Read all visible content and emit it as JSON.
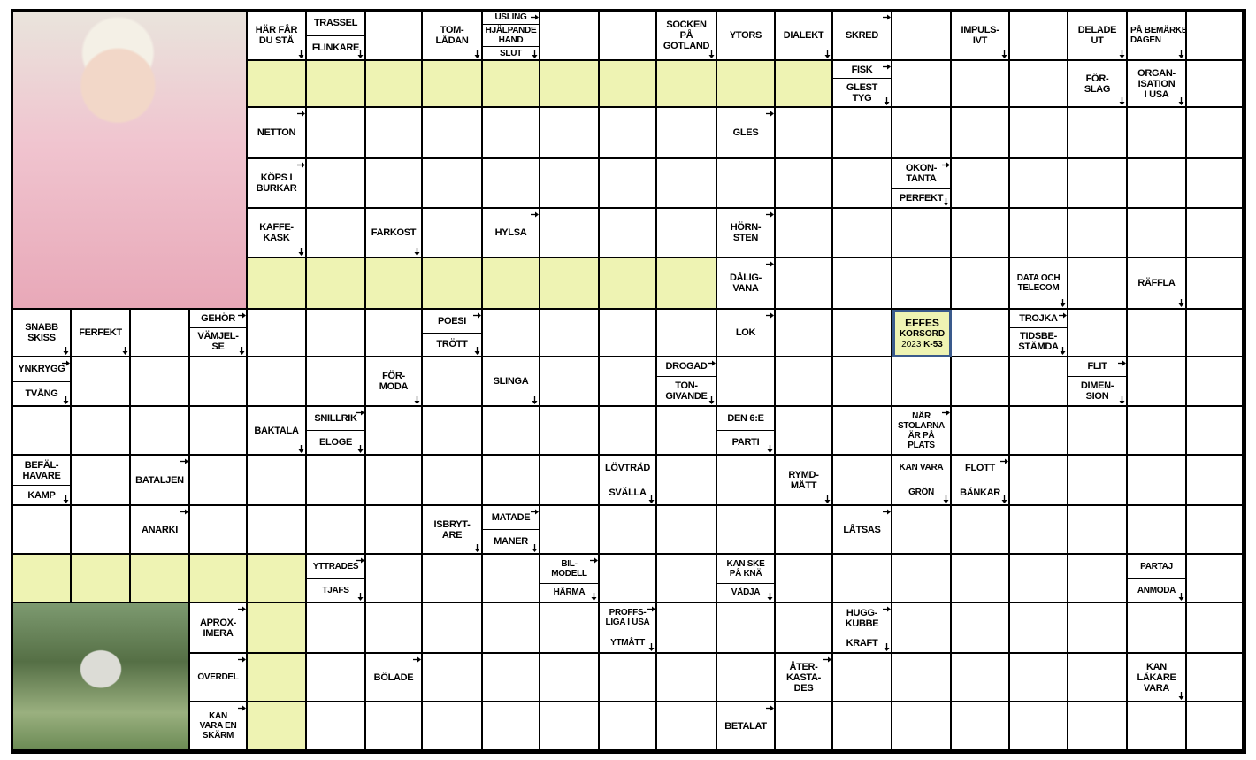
{
  "puzzle": {
    "logo": {
      "line1": "EFFES",
      "line2": "KORSORD",
      "year": "2023",
      "code": "K-53"
    },
    "highlight_color": "#eef3b3",
    "images": [
      {
        "name": "photo-laughing-elderly-woman-with-dentures"
      },
      {
        "name": "photo-beekeeper-with-hives"
      }
    ],
    "clues": [
      {
        "r": 0,
        "c": 4,
        "parts": [
          "HÄR FÅR\nDU STÅ"
        ],
        "arrows": [
          "down"
        ]
      },
      {
        "r": 0,
        "c": 5,
        "parts": [
          "TRASSEL",
          "FLINKARE"
        ],
        "arrows": [
          "down"
        ]
      },
      {
        "r": 0,
        "c": 7,
        "parts": [
          "TOM-\nLÅDAN"
        ],
        "arrows": [
          "down"
        ]
      },
      {
        "r": 0,
        "c": 8,
        "parts": [
          "USLING",
          "HJÄLPANDE\nHAND",
          "SLUT"
        ],
        "arrows": [
          "right",
          "down"
        ],
        "small": true
      },
      {
        "r": 0,
        "c": 11,
        "parts": [
          "SOCKEN\nPÅ\nGOTLAND"
        ],
        "arrows": [
          "down"
        ]
      },
      {
        "r": 0,
        "c": 12,
        "parts": [
          "YTORS"
        ],
        "arrows": []
      },
      {
        "r": 0,
        "c": 13,
        "parts": [
          "DIALEKT"
        ],
        "arrows": [
          "down"
        ]
      },
      {
        "r": 0,
        "c": 14,
        "parts": [
          "SKRED"
        ],
        "arrows": [
          "right"
        ]
      },
      {
        "r": 0,
        "c": 16,
        "parts": [
          "IMPULS-\nIVT"
        ],
        "arrows": [
          "down"
        ]
      },
      {
        "r": 0,
        "c": 18,
        "parts": [
          "DELADE\nUT"
        ],
        "arrows": [
          "down"
        ]
      },
      {
        "r": 0,
        "c": 19,
        "parts": [
          "PÅ BEMÄRKELSE-\nDAGEN"
        ],
        "arrows": [
          "down"
        ],
        "small": true
      },
      {
        "r": 1,
        "c": 14,
        "parts": [
          "FISK",
          "GLEST\nTYG"
        ],
        "arrows": [
          "right",
          "down"
        ]
      },
      {
        "r": 1,
        "c": 18,
        "parts": [
          "FÖR-\nSLAG"
        ],
        "arrows": [
          "down"
        ]
      },
      {
        "r": 1,
        "c": 19,
        "parts": [
          "ORGAN-\nISATION\nI USA"
        ],
        "arrows": [
          "down"
        ]
      },
      {
        "r": 2,
        "c": 4,
        "parts": [
          "NETTON"
        ],
        "arrows": [
          "right"
        ]
      },
      {
        "r": 2,
        "c": 12,
        "parts": [
          "GLES"
        ],
        "arrows": [
          "right"
        ]
      },
      {
        "r": 3,
        "c": 4,
        "parts": [
          "KÖPS I\nBURKAR"
        ],
        "arrows": [
          "right"
        ]
      },
      {
        "r": 3,
        "c": 15,
        "parts": [
          "OKON-\nTANTA",
          "PERFEKT"
        ],
        "arrows": [
          "right",
          "down"
        ]
      },
      {
        "r": 4,
        "c": 4,
        "parts": [
          "KAFFE-\nKASK"
        ],
        "arrows": [
          "down"
        ]
      },
      {
        "r": 4,
        "c": 6,
        "parts": [
          "FARKOST"
        ],
        "arrows": [
          "down"
        ]
      },
      {
        "r": 4,
        "c": 8,
        "parts": [
          "HYLSA"
        ],
        "arrows": [
          "right"
        ]
      },
      {
        "r": 4,
        "c": 12,
        "parts": [
          "HÖRN-\nSTEN"
        ],
        "arrows": [
          "right"
        ]
      },
      {
        "r": 5,
        "c": 12,
        "parts": [
          "DÅLIG-\nVANA"
        ],
        "arrows": [
          "right"
        ]
      },
      {
        "r": 5,
        "c": 17,
        "parts": [
          "DATA OCH\nTELECOM"
        ],
        "arrows": [
          "down"
        ],
        "small": true
      },
      {
        "r": 5,
        "c": 19,
        "parts": [
          "RÄFFLA"
        ],
        "arrows": [
          "down"
        ]
      },
      {
        "r": 6,
        "c": 0,
        "parts": [
          "SNABB\nSKISS"
        ],
        "arrows": [
          "down"
        ]
      },
      {
        "r": 6,
        "c": 1,
        "parts": [
          "FERFEKT"
        ],
        "arrows": [
          "down"
        ]
      },
      {
        "r": 6,
        "c": 3,
        "parts": [
          "GEHÖR",
          "VÄMJEL-\nSE"
        ],
        "arrows": [
          "right",
          "down"
        ]
      },
      {
        "r": 6,
        "c": 7,
        "parts": [
          "POESI",
          "TRÖTT"
        ],
        "arrows": [
          "right",
          "down"
        ]
      },
      {
        "r": 6,
        "c": 12,
        "parts": [
          "LOK"
        ],
        "arrows": [
          "right"
        ]
      },
      {
        "r": 6,
        "c": 17,
        "parts": [
          "TROJKA",
          "TIDSBE-\nSTÄMDA"
        ],
        "arrows": [
          "right",
          "down"
        ]
      },
      {
        "r": 7,
        "c": 0,
        "parts": [
          "YNKRYGG",
          "TVÅNG"
        ],
        "arrows": [
          "right",
          "down"
        ]
      },
      {
        "r": 7,
        "c": 6,
        "parts": [
          "FÖR-\nMODA"
        ],
        "arrows": [
          "down"
        ]
      },
      {
        "r": 7,
        "c": 8,
        "parts": [
          "SLINGA"
        ],
        "arrows": [
          "down"
        ]
      },
      {
        "r": 7,
        "c": 11,
        "parts": [
          "DROGAD",
          "TON-\nGIVANDE"
        ],
        "arrows": [
          "right",
          "down"
        ]
      },
      {
        "r": 7,
        "c": 18,
        "parts": [
          "FLIT",
          "DIMEN-\nSION"
        ],
        "arrows": [
          "right",
          "down"
        ]
      },
      {
        "r": 8,
        "c": 4,
        "parts": [
          "BAKTALA"
        ],
        "arrows": [
          "down"
        ]
      },
      {
        "r": 8,
        "c": 5,
        "parts": [
          "SNILLRIK",
          "ELOGE"
        ],
        "arrows": [
          "right",
          "down"
        ]
      },
      {
        "r": 8,
        "c": 12,
        "parts": [
          "DEN 6:E",
          "PARTI"
        ],
        "arrows": [
          "down"
        ]
      },
      {
        "r": 8,
        "c": 15,
        "parts": [
          "NÄR\nSTOLARNA\nÄR PÅ\nPLATS"
        ],
        "arrows": [
          "right"
        ],
        "small": true
      },
      {
        "r": 9,
        "c": 0,
        "parts": [
          "BEFÄL-\nHAVARE",
          "KAMP"
        ],
        "arrows": [
          "down"
        ]
      },
      {
        "r": 9,
        "c": 2,
        "parts": [
          "BATALJEN"
        ],
        "arrows": [
          "right"
        ]
      },
      {
        "r": 9,
        "c": 10,
        "parts": [
          "LÖVTRÄD",
          "SVÄLLA"
        ],
        "arrows": [
          "down"
        ]
      },
      {
        "r": 9,
        "c": 13,
        "parts": [
          "RYMD-\nMÅTT"
        ],
        "arrows": [
          "down"
        ]
      },
      {
        "r": 9,
        "c": 15,
        "parts": [
          "KAN VARA",
          "GRÖN"
        ],
        "arrows": [
          "down"
        ],
        "small": true
      },
      {
        "r": 9,
        "c": 16,
        "parts": [
          "FLOTT",
          "BÄNKAR"
        ],
        "arrows": [
          "right",
          "down"
        ]
      },
      {
        "r": 10,
        "c": 2,
        "parts": [
          "ANARKI"
        ],
        "arrows": [
          "right"
        ]
      },
      {
        "r": 10,
        "c": 7,
        "parts": [
          "ISBRYT-\nARE"
        ],
        "arrows": [
          "down"
        ]
      },
      {
        "r": 10,
        "c": 8,
        "parts": [
          "MATADE",
          "MANER"
        ],
        "arrows": [
          "right",
          "down"
        ]
      },
      {
        "r": 10,
        "c": 14,
        "parts": [
          "LÅTSAS"
        ],
        "arrows": [
          "right"
        ]
      },
      {
        "r": 11,
        "c": 5,
        "parts": [
          "YTTRADES",
          "TJAFS"
        ],
        "arrows": [
          "right",
          "down"
        ],
        "small": true
      },
      {
        "r": 11,
        "c": 9,
        "parts": [
          "BIL-\nMODELL",
          "HÄRMA"
        ],
        "arrows": [
          "right",
          "down"
        ],
        "small": true
      },
      {
        "r": 11,
        "c": 12,
        "parts": [
          "KAN SKE\nPÅ KNÄ",
          "VÄDJA"
        ],
        "arrows": [
          "down"
        ],
        "small": true
      },
      {
        "r": 11,
        "c": 19,
        "parts": [
          "PARTAJ",
          "ANMODA"
        ],
        "arrows": [
          "down"
        ],
        "small": true
      },
      {
        "r": 12,
        "c": 3,
        "parts": [
          "APROX-\nIMERA"
        ],
        "arrows": [
          "right"
        ]
      },
      {
        "r": 12,
        "c": 10,
        "parts": [
          "PROFFS-\nLIGA I USA",
          "YTMÅTT"
        ],
        "arrows": [
          "right",
          "down"
        ],
        "small": true
      },
      {
        "r": 12,
        "c": 14,
        "parts": [
          "HUGG-\nKUBBE",
          "KRAFT"
        ],
        "arrows": [
          "right",
          "down"
        ]
      },
      {
        "r": 13,
        "c": 3,
        "parts": [
          "ÖVERDEL"
        ],
        "arrows": [
          "right"
        ],
        "small": true
      },
      {
        "r": 13,
        "c": 6,
        "parts": [
          "BÖLADE"
        ],
        "arrows": [
          "right"
        ]
      },
      {
        "r": 13,
        "c": 13,
        "parts": [
          "ÅTER-\nKASTA-\nDES"
        ],
        "arrows": [
          "right"
        ]
      },
      {
        "r": 13,
        "c": 19,
        "parts": [
          "KAN\nLÄKARE\nVARA"
        ],
        "arrows": [
          "down"
        ]
      },
      {
        "r": 14,
        "c": 3,
        "parts": [
          "KAN\nVARA EN\nSKÄRM"
        ],
        "arrows": [
          "right"
        ],
        "small": true
      },
      {
        "r": 14,
        "c": 12,
        "parts": [
          "BETALAT"
        ],
        "arrows": [
          "right"
        ]
      }
    ]
  }
}
